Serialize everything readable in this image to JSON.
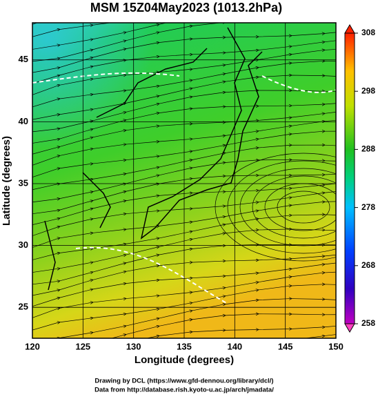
{
  "title": "MSM 15Z04May2023 (1013.2hPa)",
  "x_axis": {
    "label": "Longitude (degrees)",
    "lim": [
      120,
      150
    ],
    "ticks": [
      120,
      125,
      130,
      135,
      140,
      145,
      150
    ]
  },
  "y_axis": {
    "label": "Latitude (degrees)",
    "lim": [
      22.5,
      48
    ],
    "ticks": [
      25,
      30,
      35,
      40,
      45
    ]
  },
  "colorbar": {
    "lim": [
      258,
      308
    ],
    "ticks": [
      258,
      268,
      278,
      288,
      298,
      308
    ]
  },
  "footer": [
    "Drawing by DCL (https://www.gfd-dennou.org/library/dcl/)",
    "Data from http://database.rish.kyoto-u.ac.jp/arch/jmadata/"
  ]
}
